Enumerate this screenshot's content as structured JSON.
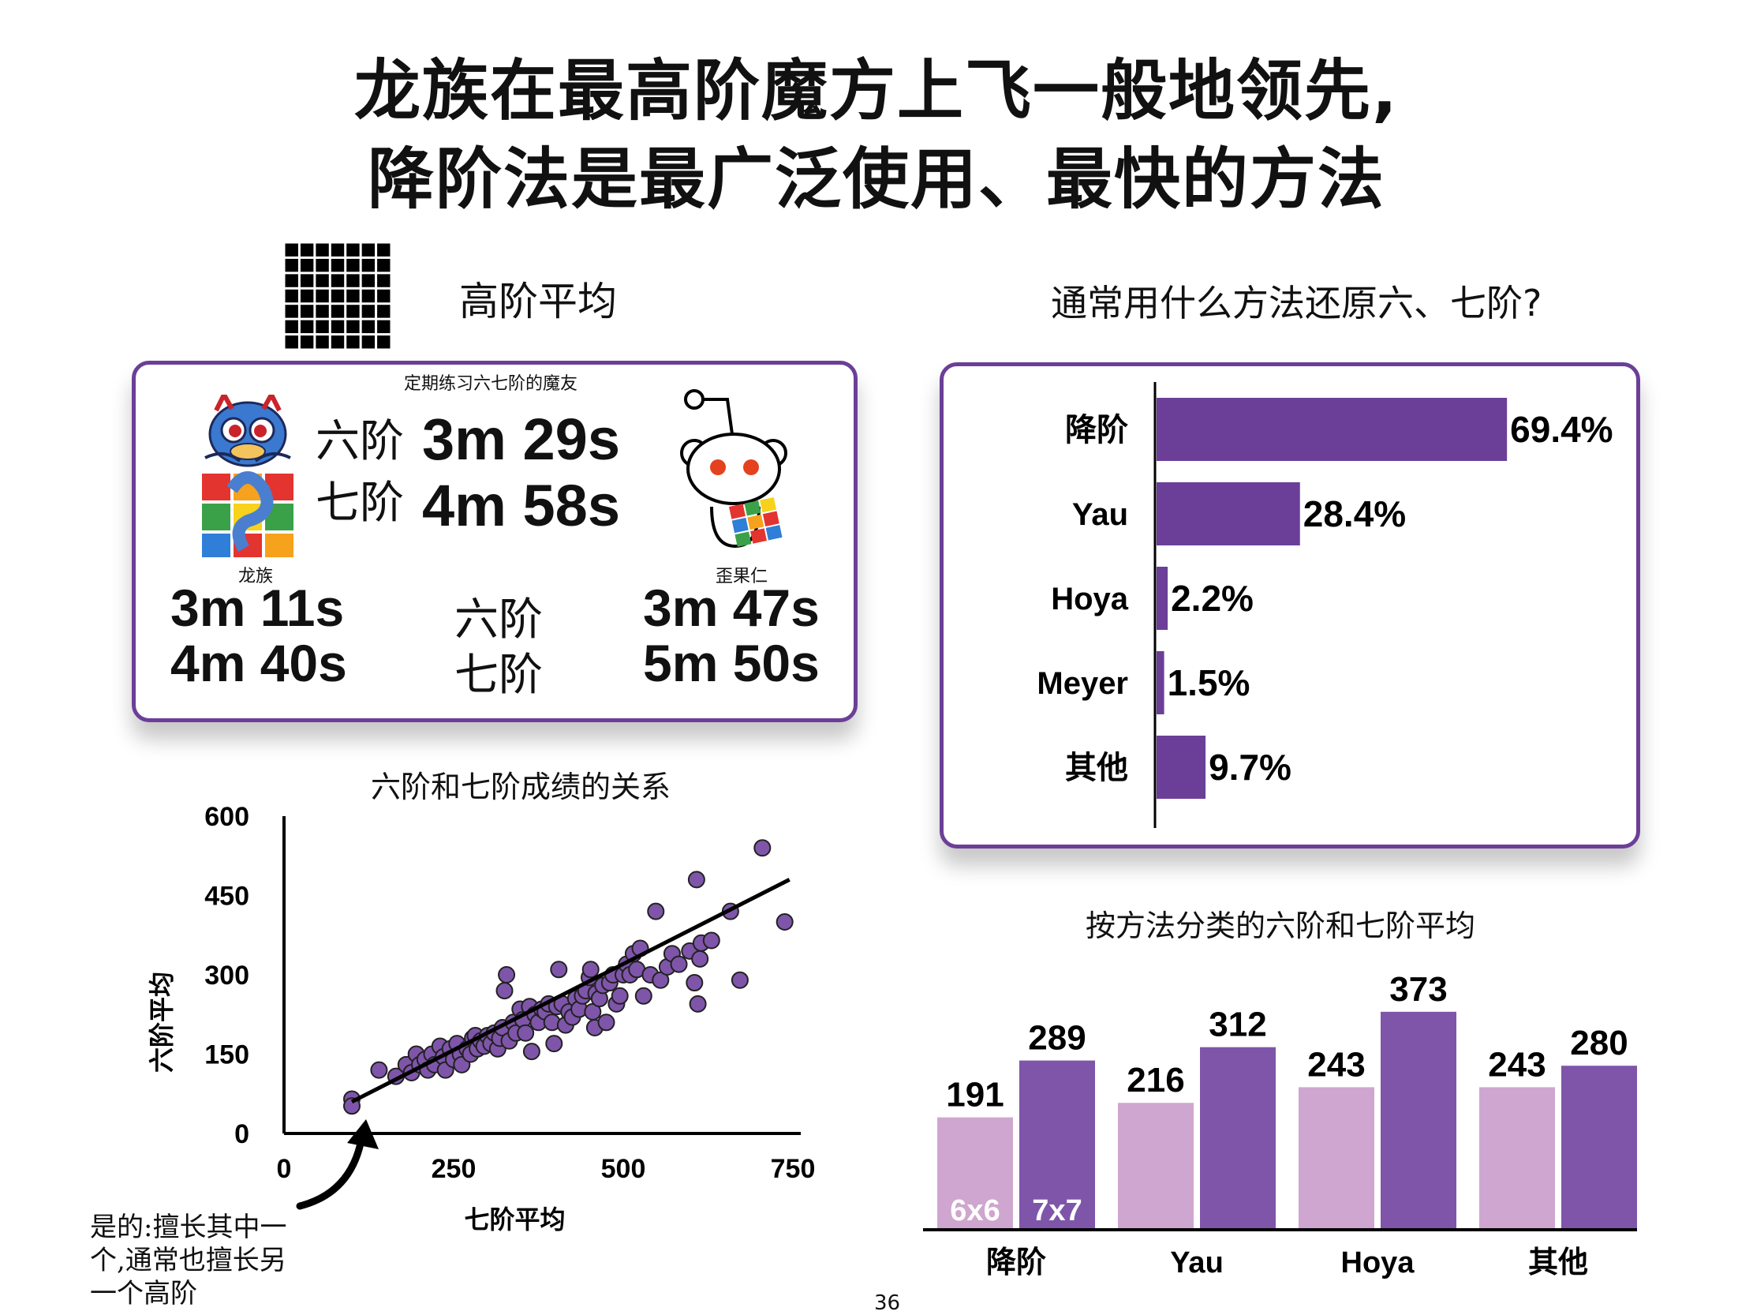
{
  "title": {
    "line1": "龙族在最高阶魔方上飞一般地领先,",
    "line2": "降阶法是最广泛使用、最快的方法"
  },
  "colors": {
    "purple": "#6b3f98",
    "purple_dark": "#7f55aa",
    "purple_light": "#cfa6d0"
  },
  "left_header": {
    "label": "高阶平均",
    "icon": "7x7-grid-icon"
  },
  "averages_card": {
    "caption": "定期练习六七阶的魔友",
    "overall": [
      {
        "label": "六阶",
        "time": "3m 29s"
      },
      {
        "label": "七阶",
        "time": "4m 58s"
      }
    ],
    "dragon": {
      "name": "龙族",
      "icon": "dragon-mascot-icon",
      "six": "3m 11s",
      "seven": "4m 40s"
    },
    "reddit": {
      "name": "歪果仁",
      "icon": "reddit-alien-icon",
      "six": "3m 47s",
      "seven": "5m 50s"
    },
    "mid_labels": {
      "six": "六阶",
      "seven": "七阶"
    }
  },
  "right_header": {
    "label": "通常用什么方法还原六、七阶?"
  },
  "charts": {
    "scatter_title": "六阶和七阶成绩的关系",
    "grouped_title": "按方法分类的六阶和七阶平均"
  },
  "annotation": {
    "text_lines": [
      "是的:擅长其中一",
      "个,通常也擅长另",
      "一个高阶"
    ]
  },
  "page_number": "36",
  "chart_data": [
    {
      "type": "bar",
      "orientation": "horizontal",
      "categories": [
        "降阶",
        "Yau",
        "Hoya",
        "Meyer",
        "其他"
      ],
      "values": [
        69.4,
        28.4,
        2.2,
        1.5,
        9.7
      ],
      "value_labels": [
        "69.4%",
        "28.4%",
        "2.2%",
        "1.5%",
        "9.7%"
      ],
      "xlim": [
        0,
        100
      ]
    },
    {
      "type": "scatter",
      "xlabel": "七阶平均",
      "ylabel": "六阶平均",
      "xlim": [
        0,
        750
      ],
      "ylim": [
        0,
        600
      ],
      "xticks": [
        0,
        250,
        500,
        750
      ],
      "yticks": [
        0,
        150,
        300,
        450,
        600
      ],
      "trendline": {
        "x": [
          100,
          745
        ],
        "y": [
          60,
          480
        ]
      },
      "points": [
        [
          100,
          65
        ],
        [
          100,
          52
        ],
        [
          140,
          120
        ],
        [
          165,
          108
        ],
        [
          180,
          130
        ],
        [
          188,
          115
        ],
        [
          195,
          150
        ],
        [
          200,
          130
        ],
        [
          208,
          140
        ],
        [
          212,
          120
        ],
        [
          218,
          150
        ],
        [
          222,
          130
        ],
        [
          230,
          165
        ],
        [
          235,
          145
        ],
        [
          238,
          120
        ],
        [
          245,
          160
        ],
        [
          250,
          140
        ],
        [
          255,
          170
        ],
        [
          260,
          150
        ],
        [
          262,
          130
        ],
        [
          270,
          160
        ],
        [
          275,
          150
        ],
        [
          278,
          180
        ],
        [
          282,
          185
        ],
        [
          285,
          160
        ],
        [
          290,
          175
        ],
        [
          295,
          165
        ],
        [
          300,
          185
        ],
        [
          305,
          170
        ],
        [
          310,
          190
        ],
        [
          315,
          160
        ],
        [
          318,
          180
        ],
        [
          322,
          200
        ],
        [
          325,
          270
        ],
        [
          328,
          300
        ],
        [
          332,
          175
        ],
        [
          338,
          210
        ],
        [
          342,
          190
        ],
        [
          348,
          235
        ],
        [
          352,
          215
        ],
        [
          356,
          190
        ],
        [
          362,
          240
        ],
        [
          365,
          155
        ],
        [
          370,
          225
        ],
        [
          375,
          210
        ],
        [
          380,
          235
        ],
        [
          385,
          230
        ],
        [
          390,
          245
        ],
        [
          395,
          210
        ],
        [
          398,
          170
        ],
        [
          402,
          240
        ],
        [
          405,
          310
        ],
        [
          410,
          245
        ],
        [
          415,
          205
        ],
        [
          420,
          230
        ],
        [
          425,
          220
        ],
        [
          430,
          255
        ],
        [
          435,
          235
        ],
        [
          440,
          260
        ],
        [
          445,
          270
        ],
        [
          450,
          295
        ],
        [
          452,
          310
        ],
        [
          455,
          230
        ],
        [
          458,
          200
        ],
        [
          460,
          265
        ],
        [
          465,
          255
        ],
        [
          470,
          280
        ],
        [
          475,
          210
        ],
        [
          480,
          285
        ],
        [
          485,
          300
        ],
        [
          490,
          245
        ],
        [
          495,
          260
        ],
        [
          500,
          300
        ],
        [
          505,
          320
        ],
        [
          510,
          300
        ],
        [
          515,
          340
        ],
        [
          520,
          310
        ],
        [
          525,
          350
        ],
        [
          530,
          260
        ],
        [
          540,
          300
        ],
        [
          548,
          420
        ],
        [
          555,
          290
        ],
        [
          565,
          315
        ],
        [
          572,
          340
        ],
        [
          582,
          320
        ],
        [
          598,
          345
        ],
        [
          605,
          285
        ],
        [
          608,
          480
        ],
        [
          610,
          245
        ],
        [
          613,
          330
        ],
        [
          615,
          360
        ],
        [
          630,
          365
        ],
        [
          658,
          420
        ],
        [
          672,
          290
        ],
        [
          705,
          540
        ],
        [
          738,
          400
        ]
      ]
    },
    {
      "type": "bar",
      "categories": [
        "降阶",
        "Yau",
        "Hoya",
        "其他"
      ],
      "series": [
        {
          "name": "6x6",
          "values": [
            191,
            216,
            243,
            243
          ]
        },
        {
          "name": "7x7",
          "values": [
            289,
            312,
            373,
            280
          ]
        }
      ],
      "ylim": [
        0,
        400
      ]
    }
  ]
}
